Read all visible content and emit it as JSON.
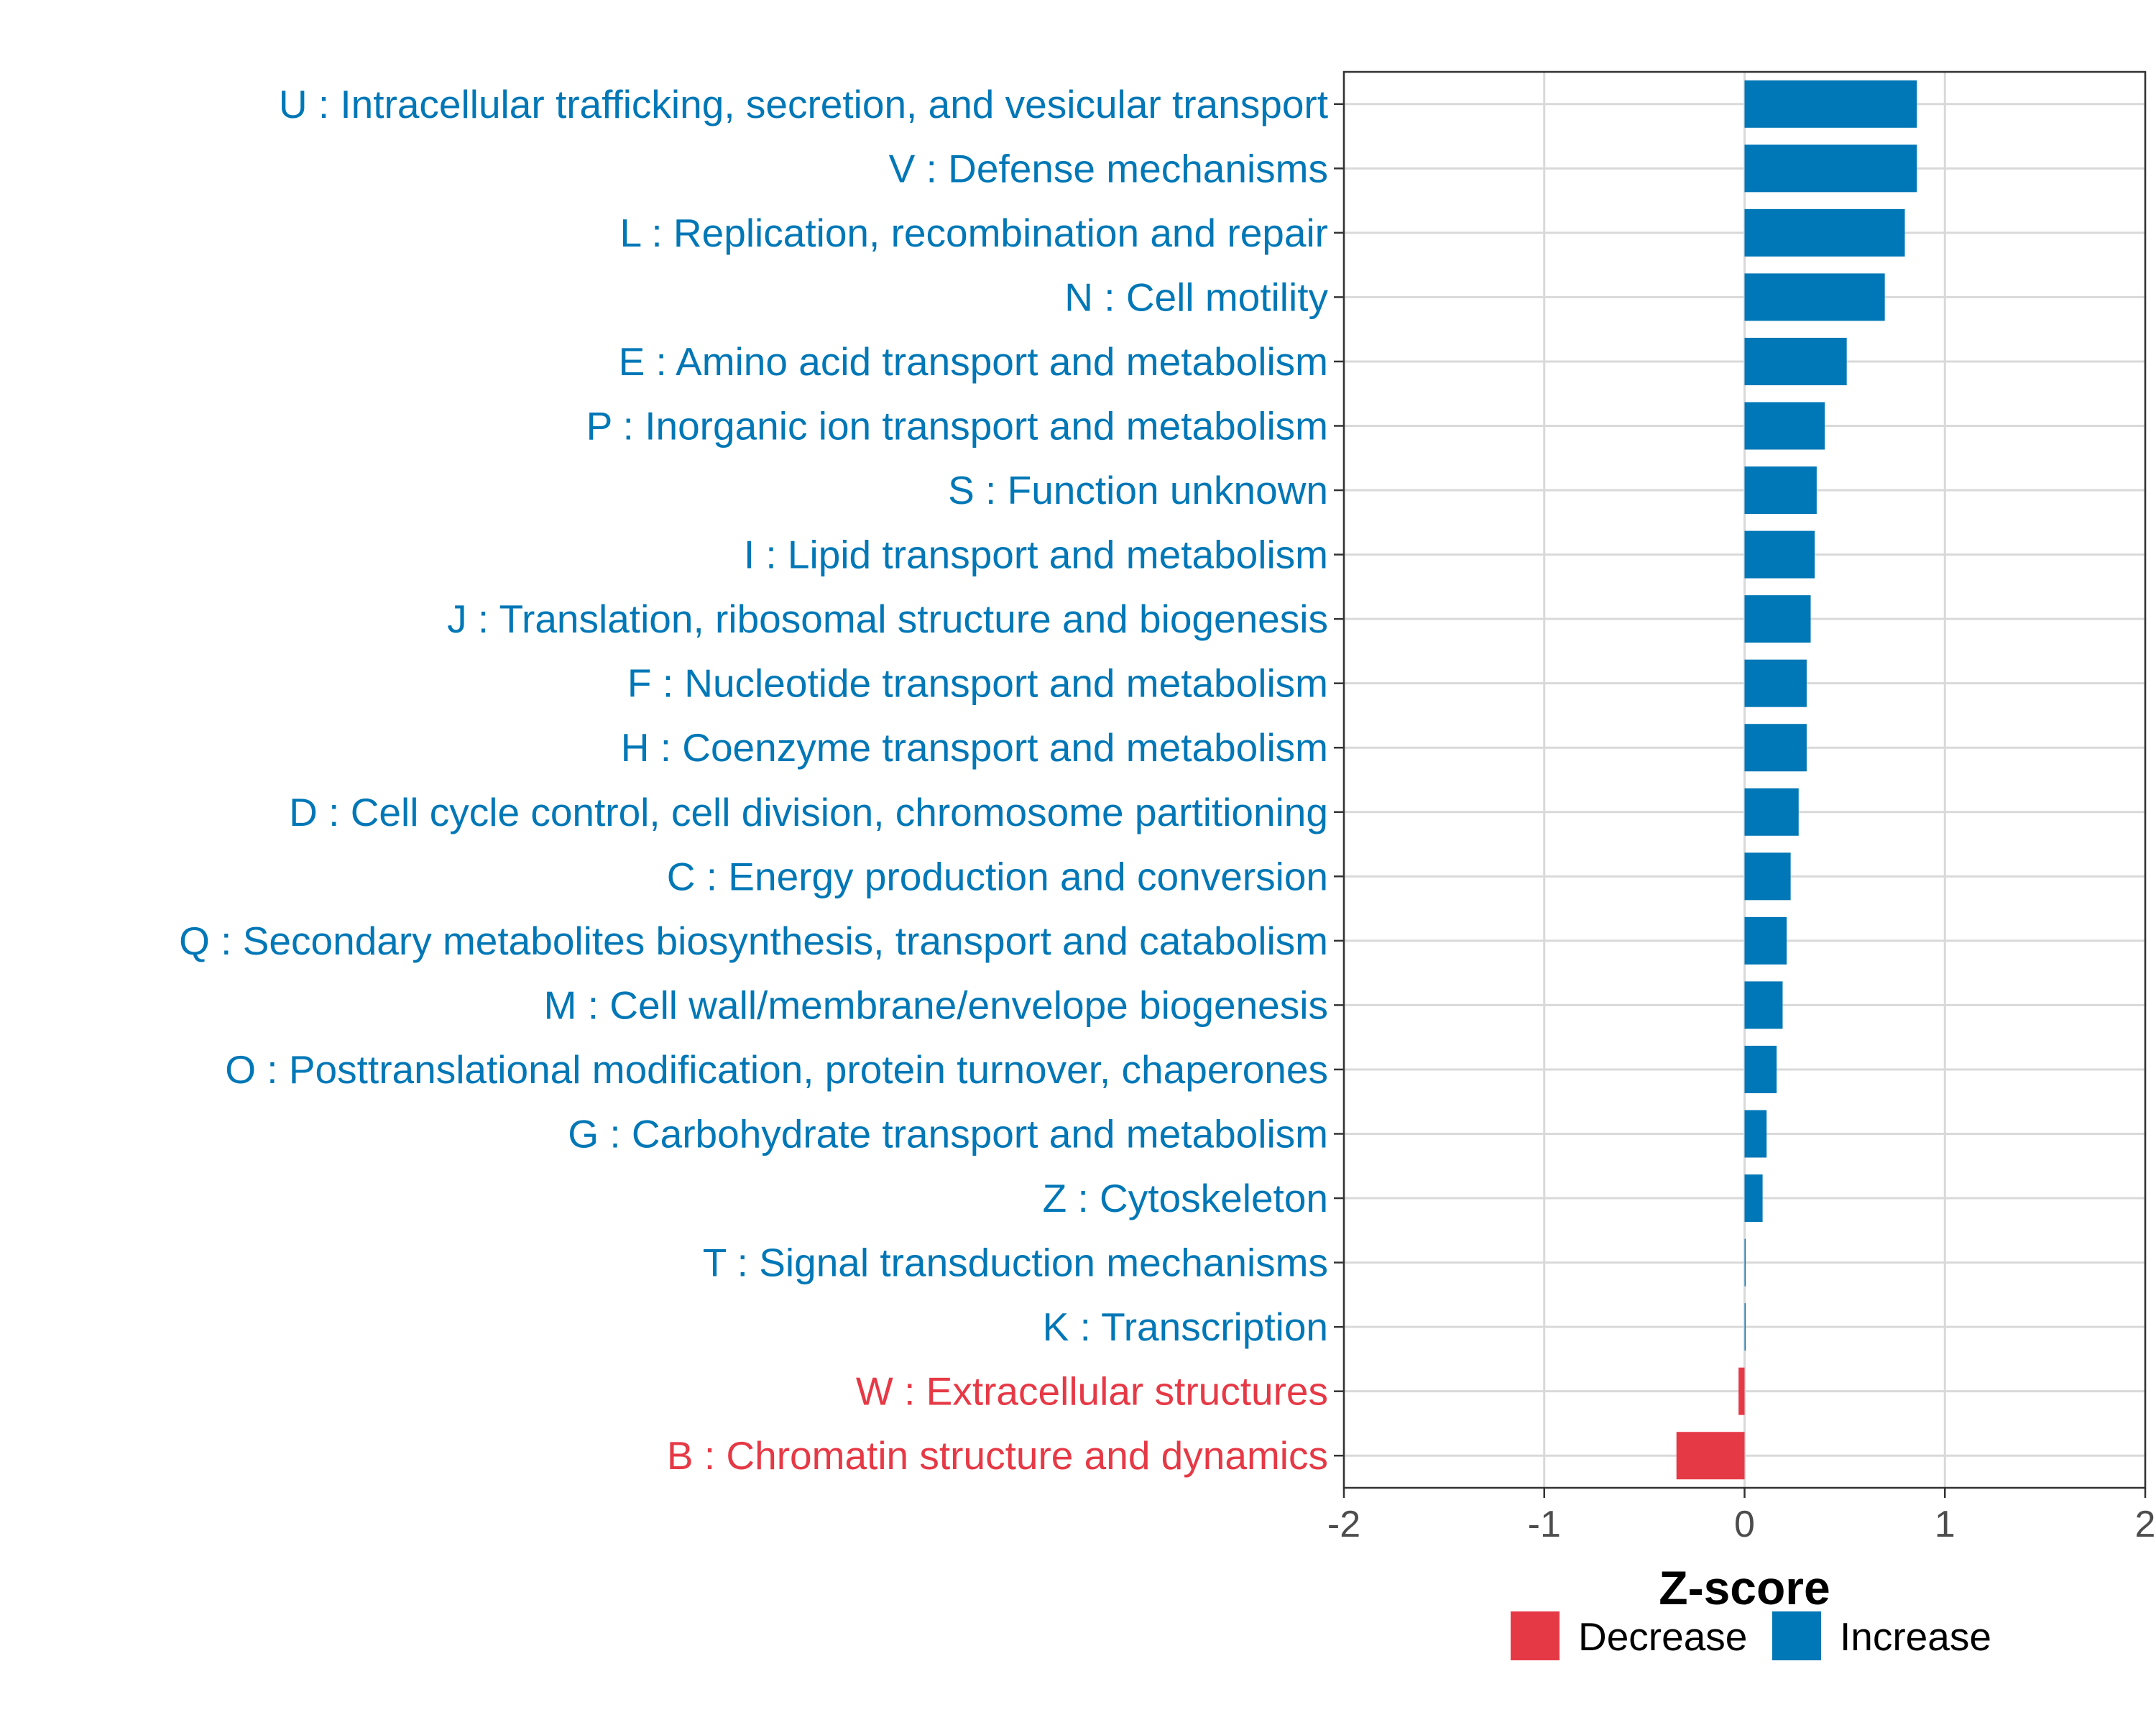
{
  "chart_data": {
    "type": "bar",
    "orientation": "horizontal",
    "title": "",
    "xlabel": "Z-score",
    "ylabel": "",
    "xlim": [
      -2,
      2
    ],
    "xticks": [
      -2,
      -1,
      0,
      1,
      2
    ],
    "xtick_labels": [
      "-2",
      "-1",
      "0",
      "1",
      "2"
    ],
    "grid": true,
    "legend_position": "bottom",
    "legend": [
      {
        "name": "Decrease",
        "color": "#E63946"
      },
      {
        "name": "Increase",
        "color": "#0077B6"
      }
    ],
    "categories": [
      "U : Intracellular trafficking, secretion, and vesicular transport",
      "V : Defense mechanisms",
      "L : Replication, recombination and repair",
      "N : Cell motility",
      "E : Amino acid transport and metabolism",
      "P : Inorganic ion transport and metabolism",
      "S : Function unknown",
      "I : Lipid transport and metabolism",
      "J : Translation, ribosomal structure and biogenesis",
      "F : Nucleotide transport and metabolism",
      "H : Coenzyme transport and metabolism",
      "D : Cell cycle control, cell division, chromosome partitioning",
      "C : Energy production and conversion",
      "Q : Secondary metabolites biosynthesis, transport and catabolism",
      "M : Cell wall/membrane/envelope biogenesis",
      "O : Posttranslational modification, protein turnover, chaperones",
      "G : Carbohydrate transport and metabolism",
      "Z : Cytoskeleton",
      "T : Signal transduction mechanisms",
      "K : Transcription",
      "W : Extracellular structures",
      "B : Chromatin structure and dynamics"
    ],
    "values": [
      0.86,
      0.86,
      0.8,
      0.7,
      0.51,
      0.4,
      0.36,
      0.35,
      0.33,
      0.31,
      0.31,
      0.27,
      0.23,
      0.21,
      0.19,
      0.16,
      0.11,
      0.09,
      0.005,
      0.005,
      -0.03,
      -0.34
    ],
    "direction": [
      "Increase",
      "Increase",
      "Increase",
      "Increase",
      "Increase",
      "Increase",
      "Increase",
      "Increase",
      "Increase",
      "Increase",
      "Increase",
      "Increase",
      "Increase",
      "Increase",
      "Increase",
      "Increase",
      "Increase",
      "Increase",
      "Increase",
      "Increase",
      "Decrease",
      "Decrease"
    ]
  },
  "colors": {
    "increase": "#0077B6",
    "decrease": "#E63946",
    "grid": "#D9D9D9",
    "panel_border": "#333333"
  }
}
